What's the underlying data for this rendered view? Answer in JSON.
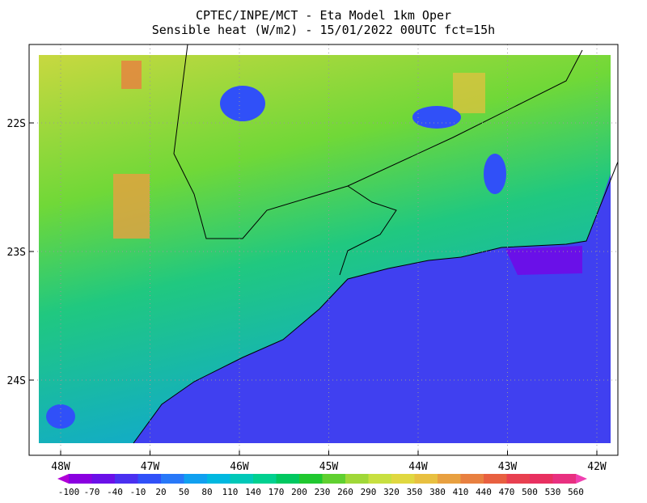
{
  "title": [
    "CPTEC/INPE/MCT -  Eta Model 1km Oper",
    "Sensible heat (W/m2) - 15/01/2022 00UTC fct=15h"
  ],
  "lat_ticks": [
    "22S",
    "23S",
    "24S"
  ],
  "lon_ticks": [
    "48W",
    "47W",
    "46W",
    "45W",
    "44W",
    "43W",
    "42W"
  ],
  "colorbar": {
    "levels": [
      -100,
      -70,
      -40,
      -10,
      20,
      50,
      80,
      110,
      140,
      170,
      200,
      230,
      260,
      290,
      320,
      350,
      380,
      410,
      440,
      470,
      500,
      530,
      560
    ],
    "colors": [
      "#b000d8",
      "#8a00e0",
      "#6a10e8",
      "#4a30f0",
      "#3050f8",
      "#2878f8",
      "#10a0f0",
      "#00b8e0",
      "#00c8b8",
      "#00d090",
      "#00c860",
      "#20c830",
      "#60d030",
      "#a0d838",
      "#c8e040",
      "#e0d840",
      "#e8c040",
      "#e8a040",
      "#e88040",
      "#e86040",
      "#e84050",
      "#e83060",
      "#e83080",
      "#f040b0"
    ]
  }
}
